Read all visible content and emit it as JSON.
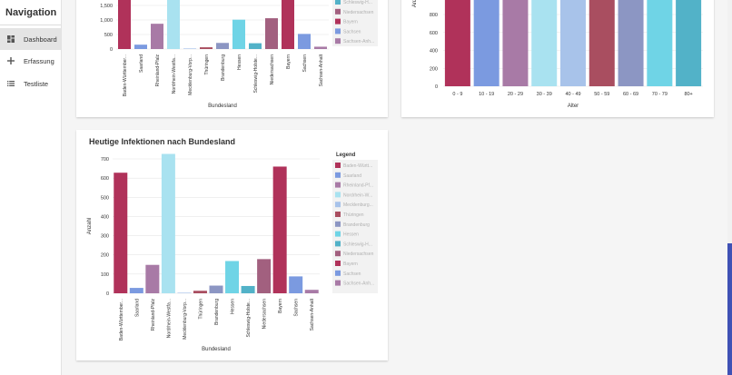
{
  "nav": {
    "title": "Navigation",
    "items": [
      {
        "label": "Dashboard",
        "icon": "dashboard-icon"
      },
      {
        "label": "Erfassung",
        "icon": "plus-icon"
      },
      {
        "label": "Testliste",
        "icon": "list-icon"
      }
    ]
  },
  "colors": [
    "#b0325a",
    "#7b9ae0",
    "#a87aa6",
    "#a9e2f0",
    "#a8c3ea",
    "#a94e60",
    "#8c96c3",
    "#6fd4e6",
    "#52b2c8",
    "#a2607f",
    "#b0325a",
    "#7b9ae0",
    "#a87aa6"
  ],
  "top_left_chart": {
    "xlabel": "Bundesland",
    "ytick_labels": [
      "0",
      "500",
      "1,000",
      "1,500"
    ],
    "yticks": [
      0,
      500,
      1000,
      1500
    ],
    "categories": [
      "Baden-Württember...",
      "Saarland",
      "Rheinland-Pfalz",
      "Nordrhein-Westfa...",
      "Mecklenburg-Vorp...",
      "Thüringen",
      "Brandenburg",
      "Hessen",
      "Schleswig-Holste...",
      "Niedersachsen",
      "Bayern",
      "Sachsen",
      "Sachsen-Anhalt"
    ],
    "values": [
      2100,
      150,
      870,
      2100,
      20,
      60,
      210,
      1010,
      200,
      1060,
      2100,
      520,
      80
    ],
    "legend": [
      "Schleswig-H...",
      "Niedersachsen",
      "Bayern",
      "Sachsen",
      "Sachsen-Anh..."
    ]
  },
  "top_right_chart": {
    "ylabel": "Anz",
    "xlabel": "Alter",
    "yticks": [
      0,
      200,
      400,
      600,
      800
    ],
    "categories": [
      "0 - 9",
      "10 - 19",
      "20 - 29",
      "30 - 39",
      "40 - 49",
      "50 - 59",
      "60 - 69",
      "70 - 79",
      "80+"
    ],
    "values": [
      1000,
      1000,
      1000,
      1000,
      1000,
      1000,
      1000,
      1000,
      1000
    ],
    "colors": [
      "#b0325a",
      "#7b9ae0",
      "#a87aa6",
      "#a9e2f0",
      "#a8c3ea",
      "#a94e60",
      "#8c96c3",
      "#6fd4e6",
      "#52b2c8"
    ]
  },
  "main_chart": {
    "title": "Heutige Infektionen nach Bundesland",
    "ylabel": "Anzahl",
    "xlabel": "Bundesland",
    "legend_title": "Legend",
    "yticks": [
      0,
      100,
      200,
      300,
      400,
      500,
      600,
      700
    ],
    "categories": [
      "Baden-Württember...",
      "Saarland",
      "Rheinland-Pfalz",
      "Nordrhein-Westfa...",
      "Mecklenburg-Vorp...",
      "Thüringen",
      "Brandenburg",
      "Hessen",
      "Schleswig-Holste...",
      "Niedersachsen",
      "Bayern",
      "Sachsen",
      "Sachsen-Anhalt"
    ],
    "values": [
      628,
      28,
      148,
      726,
      3,
      13,
      40,
      168,
      38,
      178,
      660,
      88,
      18
    ],
    "legend": [
      "Baden-Württ...",
      "Saarland",
      "Rheinland-Pf...",
      "Nordrhein-W...",
      "Mecklenburg...",
      "Thüringen",
      "Brandenburg",
      "Hessen",
      "Schleswig-H...",
      "Niedersachsen",
      "Bayern",
      "Sachsen",
      "Sachsen-Anh..."
    ]
  }
}
